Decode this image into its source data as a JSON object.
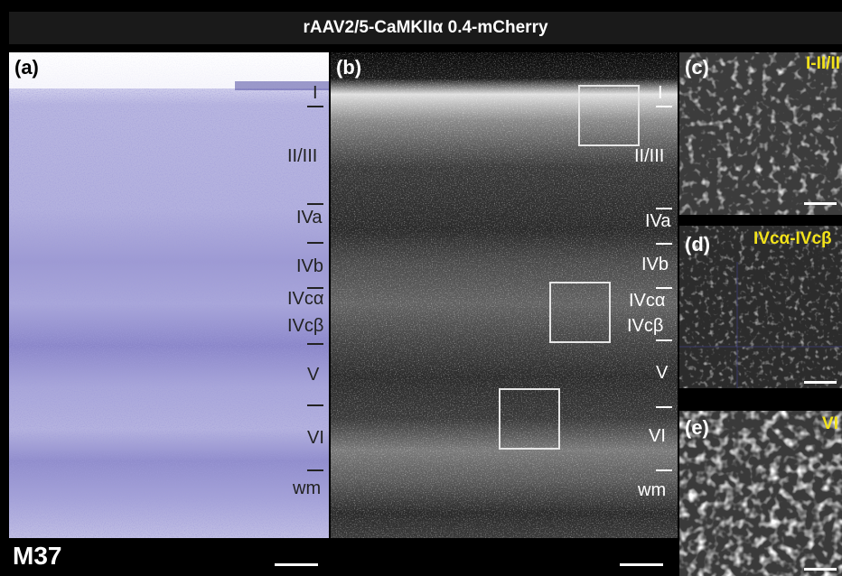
{
  "title": "rAAV2/5-CaMKIIα 0.4-mCherry",
  "panels": {
    "a": {
      "label": "(a)",
      "layers": [
        "I",
        "II/III",
        "IVa",
        "IVb",
        "IVcα",
        "IVcβ",
        "V",
        "VI",
        "wm"
      ],
      "animal": "M37"
    },
    "b": {
      "label": "(b)",
      "layers": [
        "I",
        "II/III",
        "IVa",
        "IVb",
        "IVcα",
        "IVcβ",
        "V",
        "VI",
        "wm"
      ]
    },
    "c": {
      "label": "(c)",
      "region": "I-II/II"
    },
    "d": {
      "label": "(d)",
      "region": "IVcα-IVcβ"
    },
    "e": {
      "label": "(e)",
      "region": "VI"
    }
  },
  "colors": {
    "nissl": "#a7a5d8",
    "fluor": "#ffffff",
    "inset_label": "#f2e21a"
  }
}
